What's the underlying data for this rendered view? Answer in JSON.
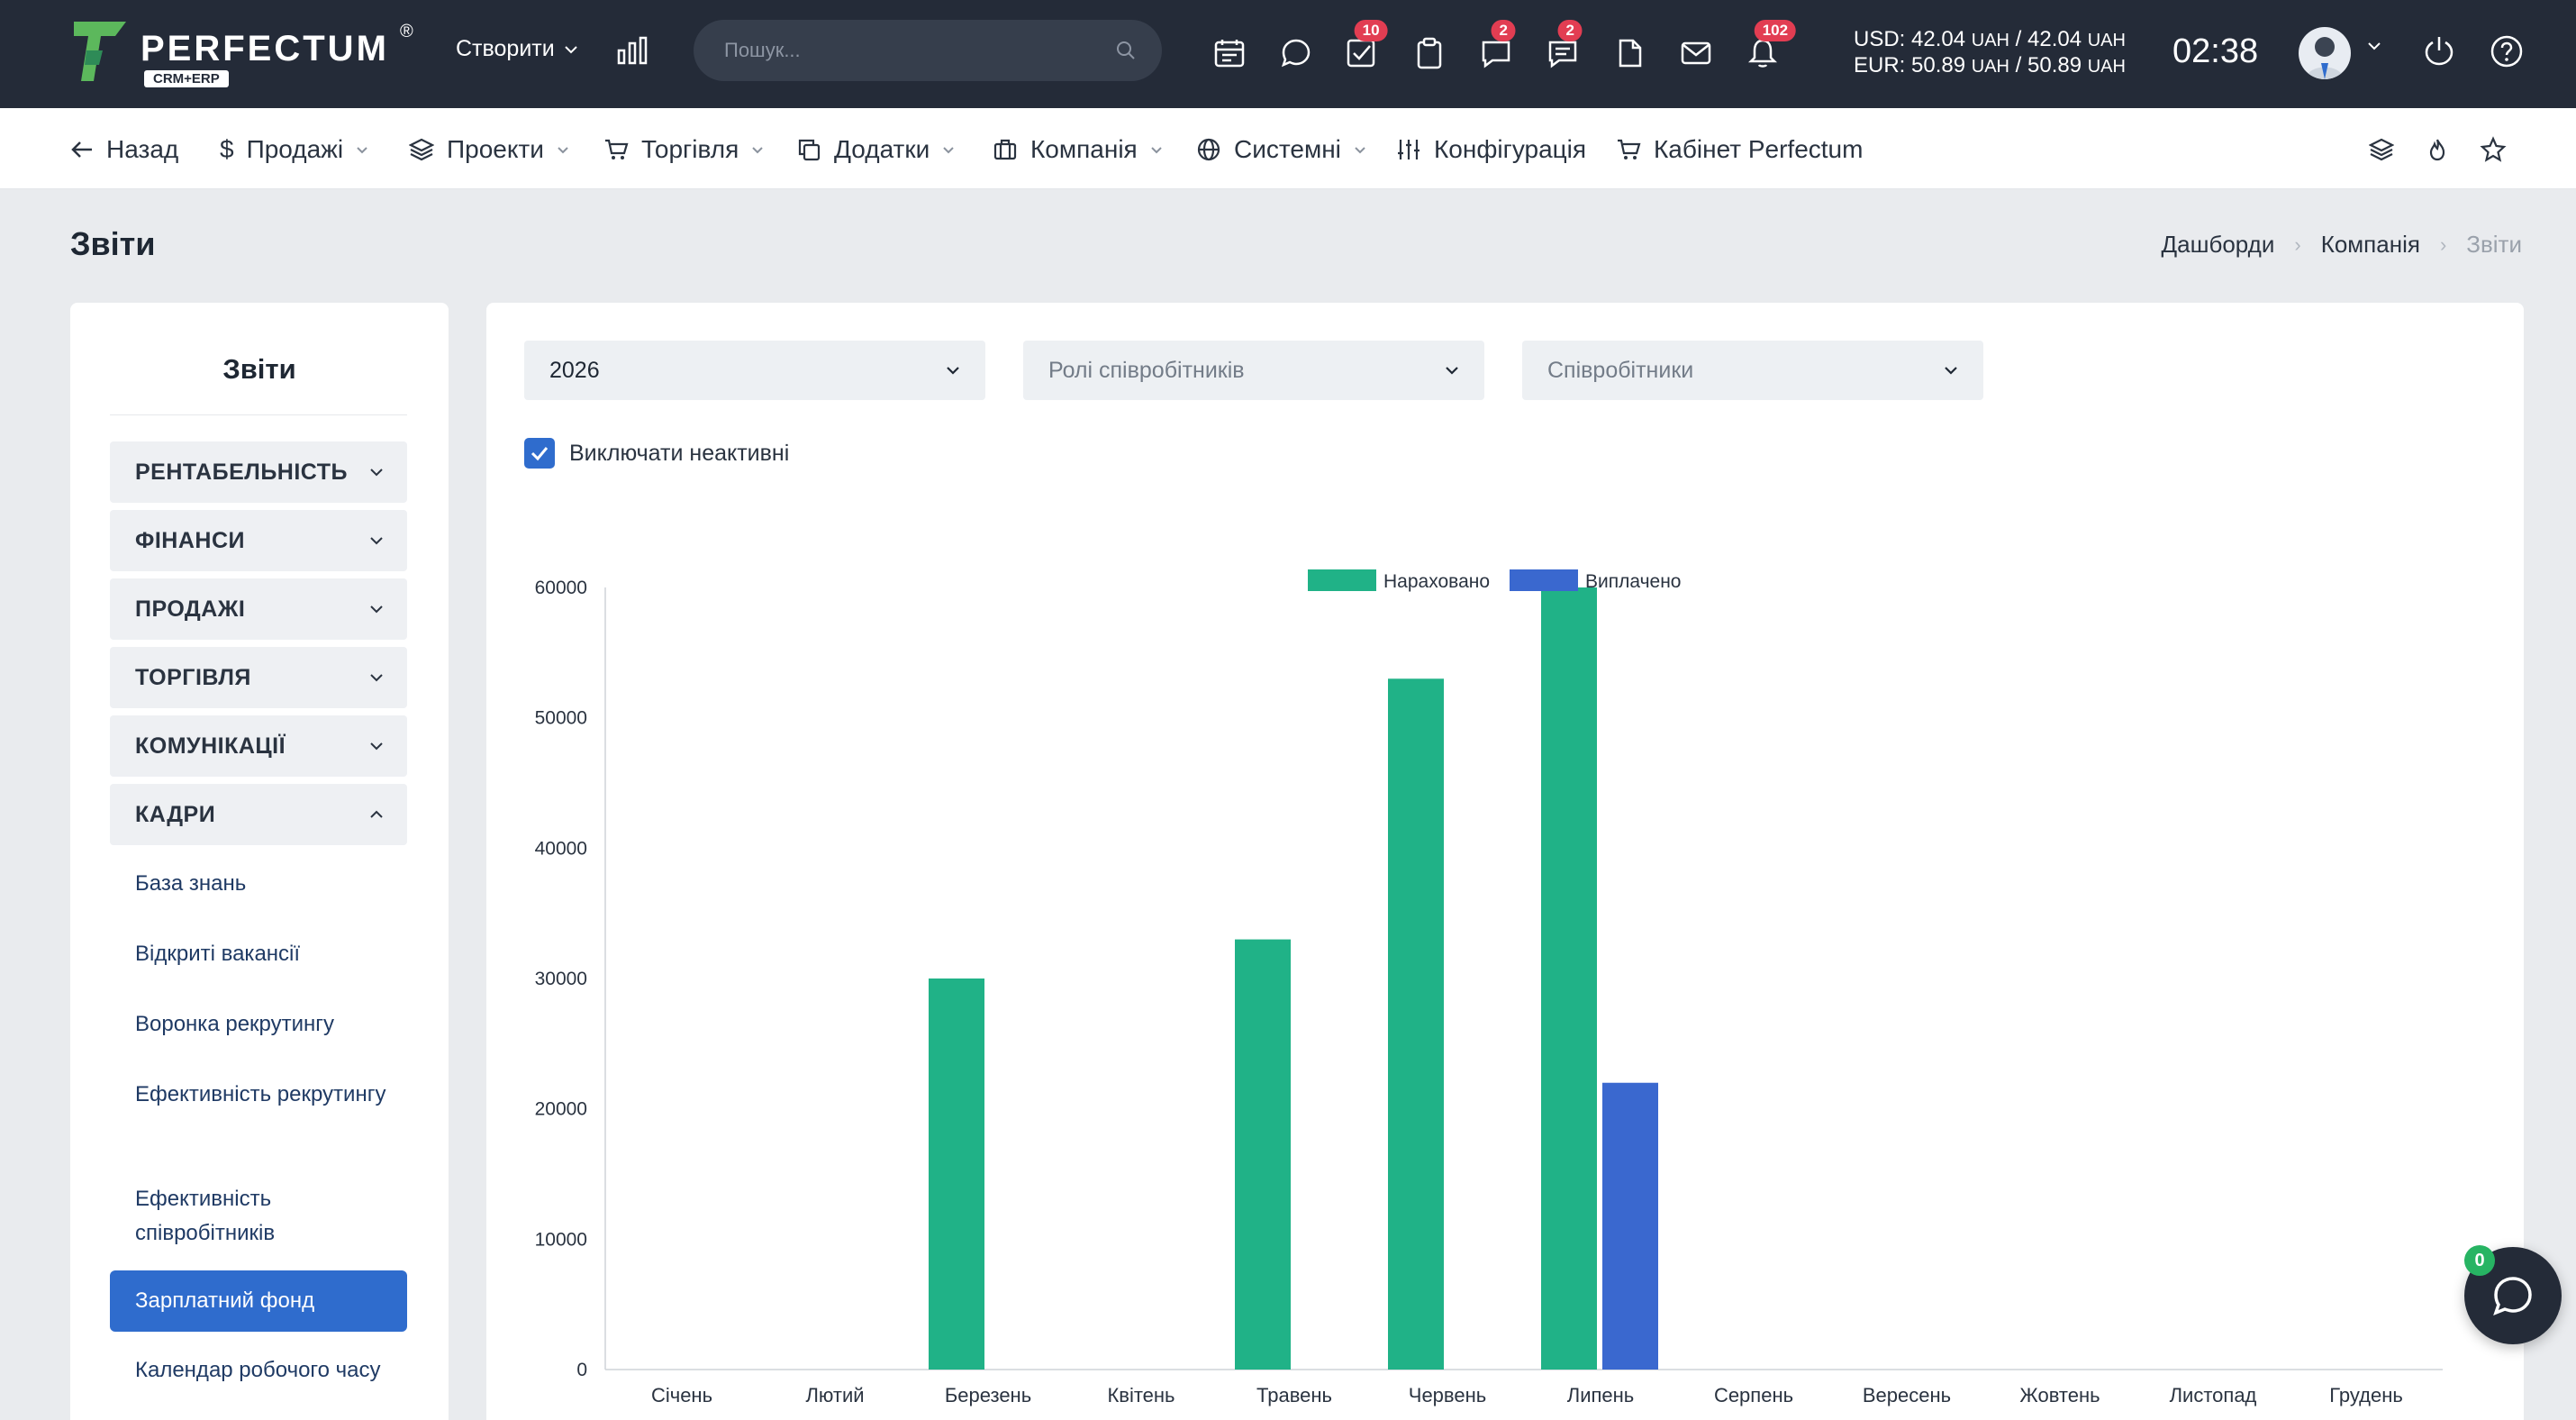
{
  "header": {
    "logo_text": "PERFECTUM",
    "logo_reg": "®",
    "logo_tag": "CRM+ERP",
    "create_label": "Створити",
    "search_placeholder": "Пошук...",
    "badges": {
      "tasks": "10",
      "chat2": "2",
      "messages": "2",
      "notifications": "102"
    },
    "rates": {
      "usd_label": "USD:",
      "usd_buy": "42.04",
      "usd_sell": "42.04",
      "eur_label": "EUR:",
      "eur_buy": "50.89",
      "eur_sell": "50.89",
      "unit": "UAH",
      "sep": "/"
    },
    "clock": "02:38"
  },
  "nav": {
    "back": "Назад",
    "sales": "Продажі",
    "projects": "Проекти",
    "trade": "Торгівля",
    "addons": "Додатки",
    "company": "Компанія",
    "system": "Системні",
    "config": "Конфігурація",
    "cabinet": "Кабінет Perfectum"
  },
  "page": {
    "title": "Звіти",
    "breadcrumb": [
      "Дашборди",
      "Компанія",
      "Звіти"
    ]
  },
  "sidebar": {
    "title": "Звіти",
    "categories": [
      "РЕНТАБЕЛЬНІСТЬ",
      "ФІНАНСИ",
      "ПРОДАЖІ",
      "ТОРГІВЛЯ",
      "КОМУНІКАЦІЇ",
      "КАДРИ"
    ],
    "hr_items": [
      "База знань",
      "Відкриті вакансії",
      "Воронка рекрутингу",
      "Ефективність рекрутингу",
      "Ефективність співробітників",
      "Зарплатний фонд",
      "Календар робочого часу"
    ],
    "active_item": "Зарплатний фонд"
  },
  "filters": {
    "year": "2026",
    "roles_placeholder": "Ролі співробітників",
    "employees_placeholder": "Співробітники",
    "exclude_inactive_label": "Виключати неактивні",
    "exclude_inactive": true
  },
  "chat": {
    "badge": "0"
  },
  "colors": {
    "accrued": "#20b287",
    "paid": "#3a68cf",
    "topbar": "#242b38",
    "accent": "#2f6ccd"
  },
  "chart_data": {
    "type": "bar",
    "categories": [
      "Січень",
      "Лютий",
      "Березень",
      "Квітень",
      "Травень",
      "Червень",
      "Липень",
      "Серпень",
      "Вересень",
      "Жовтень",
      "Листопад",
      "Грудень"
    ],
    "series": [
      {
        "name": "Нараховано",
        "color": "#20b287",
        "values": [
          0,
          0,
          30000,
          0,
          33000,
          53000,
          60000,
          0,
          0,
          0,
          0,
          0
        ]
      },
      {
        "name": "Виплачено",
        "color": "#3a68cf",
        "values": [
          0,
          0,
          0,
          0,
          0,
          0,
          22000,
          0,
          0,
          0,
          0,
          0
        ]
      }
    ],
    "ylim": [
      0,
      60000
    ],
    "yticks": [
      0,
      10000,
      20000,
      30000,
      40000,
      50000,
      60000
    ],
    "legend": "top-center",
    "grid": false,
    "title": "",
    "xlabel": "",
    "ylabel": ""
  }
}
